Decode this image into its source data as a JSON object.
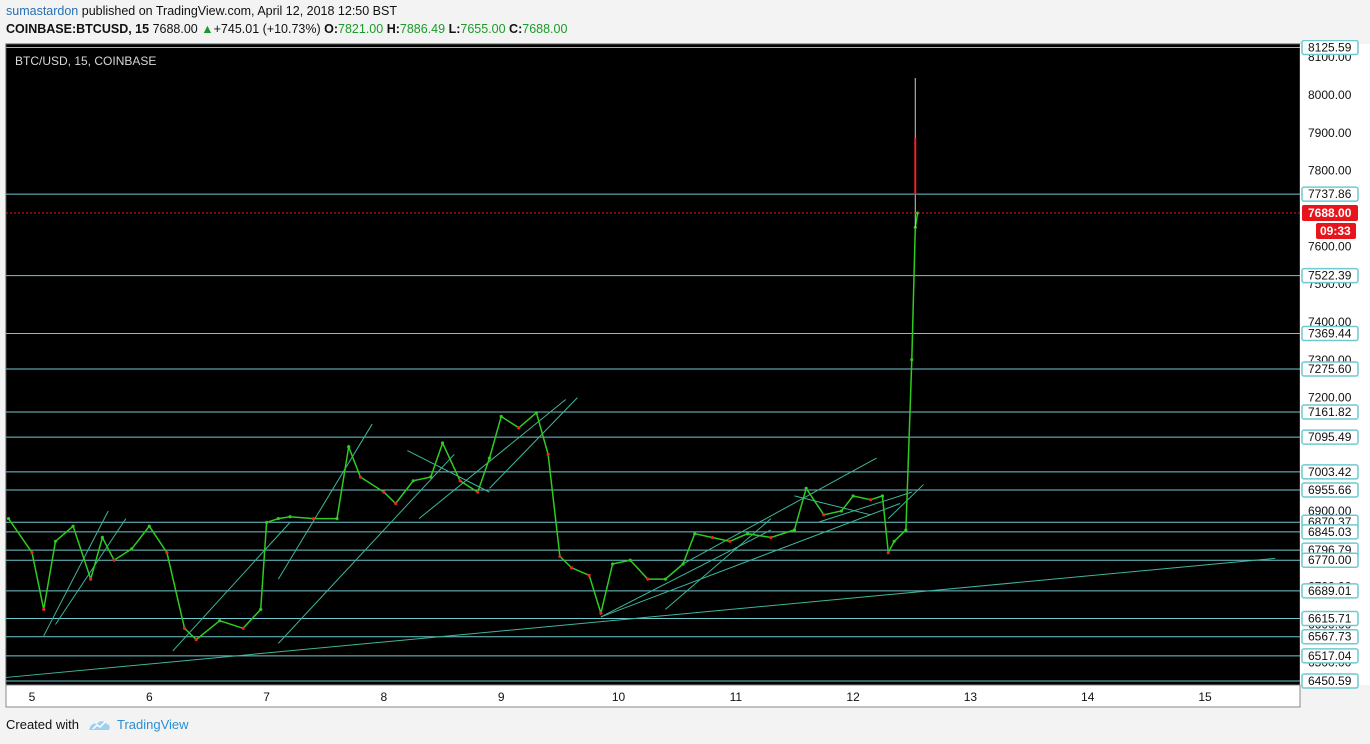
{
  "header": {
    "author": "sumastardon",
    "published": " published on TradingView.com, April 12, 2018 12:50 BST",
    "symbol": "COINBASE:BTCUSD, 15",
    "last": "7688.00",
    "change": "+745.01 (+10.73%)",
    "o_label": "O:",
    "o_val": "7821.00",
    "h_label": "H:",
    "h_val": "7886.49",
    "l_label": "L:",
    "l_val": "7655.00",
    "c_label": "C:",
    "c_val": "7688.00"
  },
  "footer": {
    "created": "Created with",
    "brand": "TradingView"
  },
  "colors": {
    "background": "#000000",
    "level_line": "#6fc9cf",
    "trend_line": "#3fb59a",
    "up": "#2ecc1f",
    "down": "#e8242a",
    "price_tag": "#e8141c"
  },
  "chart_data": {
    "type": "line",
    "title": "BTC/USD, 15, COINBASE",
    "x_ticks": [
      "5",
      "6",
      "7",
      "8",
      "9",
      "10",
      "11",
      "12",
      "13",
      "14",
      "15"
    ],
    "y_ticks": [
      "8100.00",
      "8000.00",
      "7900.00",
      "7800.00",
      "7600.00",
      "7500.00",
      "7400.00",
      "7300.00",
      "7200.00",
      "7100.00",
      "7000.00",
      "6900.00",
      "6800.00",
      "6700.00",
      "6600.00",
      "6500.00"
    ],
    "ylim": [
      6440,
      8135
    ],
    "last_price": 7688.0,
    "countdown": "09:33",
    "levels": [
      8125.59,
      7737.86,
      7522.39,
      7369.44,
      7275.6,
      7161.82,
      7095.49,
      7003.42,
      6955.66,
      6870.37,
      6845.03,
      6796.79,
      6770.0,
      6689.01,
      6615.71,
      6567.73,
      6517.04,
      6450.59
    ],
    "level_labels": [
      "8125.59",
      "7737.86",
      "7522.39",
      "7369.44",
      "7275.60",
      "7161.82",
      "7095.49",
      "7003.42",
      "6955.66",
      "6870.37",
      "6845.03",
      "6796.79",
      "6770.00",
      "6689.01",
      "6615.71",
      "6567.73",
      "6517.04",
      "6450.59"
    ],
    "series": [
      {
        "x": [
          4.8,
          5.0,
          5.1,
          5.2,
          5.35,
          5.5,
          5.6,
          5.7,
          5.85,
          6.0,
          6.15,
          6.3,
          6.4,
          6.6,
          6.8,
          6.95,
          7.0,
          7.1,
          7.2,
          7.4,
          7.6,
          7.7,
          7.8,
          8.0,
          8.1,
          8.25,
          8.4,
          8.5,
          8.65,
          8.8,
          8.9,
          9.0,
          9.15,
          9.3,
          9.4,
          9.5,
          9.6,
          9.75,
          9.85,
          9.95,
          10.1,
          10.25,
          10.4,
          10.55,
          10.65,
          10.8,
          10.95,
          11.1,
          11.3,
          11.5,
          11.6,
          11.75,
          11.9,
          12.0,
          12.15,
          12.25,
          12.3,
          12.35,
          12.45,
          12.5,
          12.53,
          12.55
        ],
        "y": [
          6880,
          6790,
          6640,
          6820,
          6860,
          6720,
          6830,
          6770,
          6800,
          6860,
          6790,
          6590,
          6560,
          6610,
          6590,
          6640,
          6870,
          6880,
          6885,
          6880,
          6880,
          7070,
          6990,
          6950,
          6920,
          6980,
          6990,
          7080,
          6980,
          6950,
          7040,
          7150,
          7120,
          7160,
          7050,
          6780,
          6750,
          6730,
          6630,
          6760,
          6770,
          6720,
          6720,
          6760,
          6840,
          6830,
          6820,
          6840,
          6830,
          6850,
          6960,
          6890,
          6900,
          6940,
          6930,
          6940,
          6790,
          6820,
          6850,
          7300,
          7650,
          7688
        ]
      }
    ]
  }
}
